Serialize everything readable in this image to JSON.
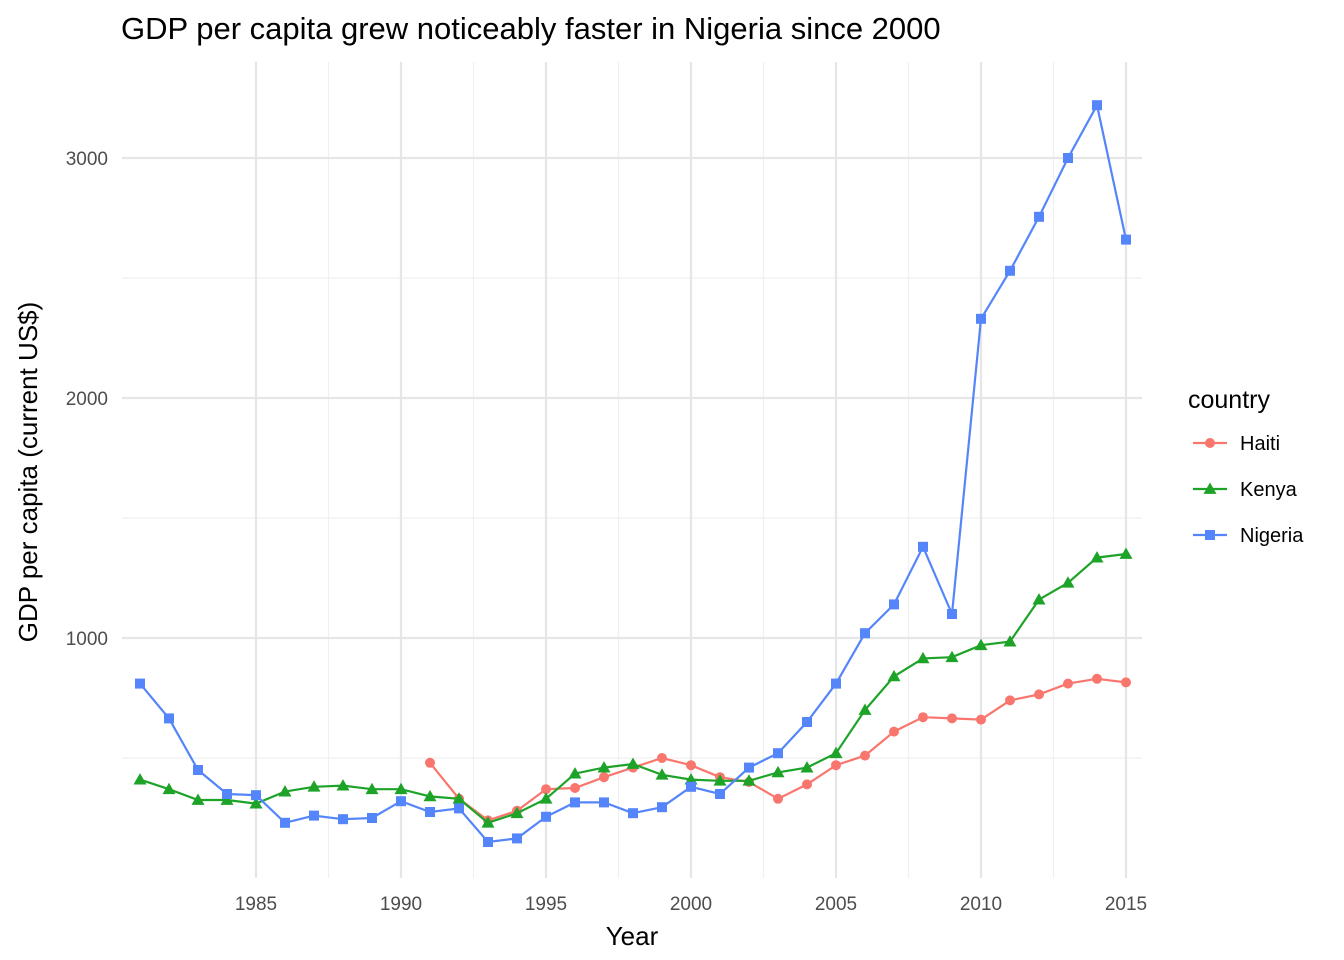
{
  "chart_data": {
    "type": "line",
    "title": "GDP per capita grew noticeably faster in Nigeria since 2000",
    "xlabel": "Year",
    "ylabel": "GDP per capita (current US$)",
    "xlim": [
      1981,
      2015
    ],
    "ylim": [
      0,
      3300
    ],
    "x_ticks": [
      1985,
      1990,
      1995,
      2000,
      2005,
      2010,
      2015
    ],
    "y_ticks": [
      1000,
      2000,
      3000
    ],
    "grid": true,
    "legend": {
      "title": "country",
      "placement": "right"
    },
    "series": [
      {
        "name": "Haiti",
        "color": "#F8766D",
        "marker": "circle",
        "x": [
          1991,
          1992,
          1993,
          1994,
          1995,
          1996,
          1997,
          1998,
          1999,
          2000,
          2001,
          2002,
          2003,
          2004,
          2005,
          2006,
          2007,
          2008,
          2009,
          2010,
          2011,
          2012,
          2013,
          2014,
          2015
        ],
        "y": [
          480,
          330,
          240,
          280,
          370,
          375,
          420,
          460,
          500,
          470,
          420,
          400,
          330,
          390,
          470,
          510,
          610,
          670,
          665,
          660,
          740,
          765,
          810,
          830,
          815
        ]
      },
      {
        "name": "Kenya",
        "color": "#1EA329",
        "marker": "triangle",
        "x": [
          1981,
          1982,
          1983,
          1984,
          1985,
          1986,
          1987,
          1988,
          1989,
          1990,
          1991,
          1992,
          1993,
          1994,
          1995,
          1996,
          1997,
          1998,
          1999,
          2000,
          2001,
          2002,
          2003,
          2004,
          2005,
          2006,
          2007,
          2008,
          2009,
          2010,
          2011,
          2012,
          2013,
          2014,
          2015
        ],
        "y": [
          410,
          370,
          325,
          325,
          310,
          360,
          380,
          385,
          370,
          370,
          340,
          330,
          230,
          270,
          330,
          435,
          460,
          475,
          430,
          410,
          405,
          405,
          440,
          460,
          520,
          700,
          840,
          915,
          920,
          970,
          985,
          1160,
          1230,
          1335,
          1350
        ]
      },
      {
        "name": "Nigeria",
        "color": "#5585FA",
        "marker": "square",
        "x": [
          1981,
          1982,
          1983,
          1984,
          1985,
          1986,
          1987,
          1988,
          1989,
          1990,
          1991,
          1992,
          1993,
          1994,
          1995,
          1996,
          1997,
          1998,
          1999,
          2000,
          2001,
          2002,
          2003,
          2004,
          2005,
          2006,
          2007,
          2008,
          2009,
          2010,
          2011,
          2012,
          2013,
          2014,
          2015
        ],
        "y": [
          810,
          665,
          450,
          350,
          345,
          230,
          260,
          245,
          250,
          320,
          275,
          290,
          150,
          165,
          255,
          315,
          315,
          270,
          295,
          380,
          350,
          460,
          520,
          650,
          810,
          1020,
          1140,
          1380,
          1100,
          2330,
          2530,
          2755,
          3000,
          3220,
          2660
        ]
      }
    ]
  }
}
